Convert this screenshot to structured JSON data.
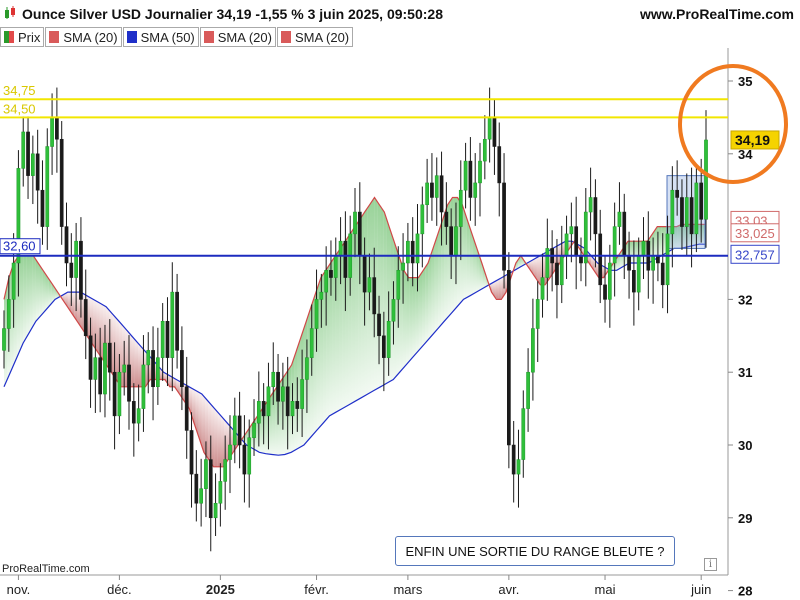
{
  "header": {
    "title": "Ounce Silver USD Journalier 34,19 -1,55 % 3 juin 2025, 09:50:28",
    "site": "www.ProRealTime.com"
  },
  "legend": [
    {
      "label": "Prix",
      "color": "#e24a4a"
    },
    {
      "label": "SMA (20)",
      "color": "#d95a5a"
    },
    {
      "label": "SMA (50)",
      "color": "#1f2fc9"
    },
    {
      "label": "SMA (20)",
      "color": "#d95a5a"
    },
    {
      "label": "SMA (20)",
      "color": "#d95a5a"
    }
  ],
  "footer": {
    "source": "ProRealTime.com",
    "note": "ENFIN UNE SORTIE DU RANGE BLEUTE ?",
    "info": "i"
  },
  "chart_data": {
    "type": "candlestick",
    "ylim": [
      27.7,
      35.4
    ],
    "y_ticks": [
      {
        "value": 28,
        "label": "28"
      },
      {
        "value": 29,
        "label": "29"
      },
      {
        "value": 30,
        "label": "30"
      },
      {
        "value": 31,
        "label": "31"
      },
      {
        "value": 32,
        "label": "32"
      },
      {
        "value": 34,
        "label": "34"
      },
      {
        "value": 35,
        "label": "35"
      }
    ],
    "x_ticks": [
      {
        "index": 3,
        "label": "nov."
      },
      {
        "index": 24,
        "label": "déc."
      },
      {
        "index": 45,
        "label": "2025"
      },
      {
        "index": 65,
        "label": "févr."
      },
      {
        "index": 84,
        "label": "mars"
      },
      {
        "index": 105,
        "label": "avr."
      },
      {
        "index": 125,
        "label": "mai"
      },
      {
        "index": 145,
        "label": "juin"
      }
    ],
    "horizontal_lines": [
      {
        "value": 34.75,
        "label": "34,75",
        "color": "#f2e600",
        "side": "left"
      },
      {
        "value": 34.5,
        "label": "34,50",
        "color": "#f2e600",
        "side": "left"
      },
      {
        "value": 32.6,
        "label": "32,60",
        "color": "#1c2bbf",
        "side": "left"
      }
    ],
    "price_labels": [
      {
        "value": 34.19,
        "label": "34,19",
        "bg": "#f5d300",
        "color": "#111"
      },
      {
        "value": 33.03,
        "label": "33,03",
        "bg": "#fff",
        "color": "#d06a6a"
      },
      {
        "value": 33.025,
        "label": "33,025",
        "bg": "#fff",
        "color": "#d06a6a"
      },
      {
        "value": 32.757,
        "label": "32,757",
        "bg": "#fff",
        "color": "#3545c8"
      }
    ],
    "series_closes": [
      31.6,
      32.0,
      32.5,
      33.8,
      34.3,
      33.7,
      34.0,
      33.5,
      33.0,
      34.1,
      34.5,
      34.2,
      33.0,
      32.5,
      32.3,
      32.8,
      32.0,
      31.5,
      30.9,
      31.2,
      30.7,
      31.4,
      31.0,
      30.4,
      31.0,
      31.1,
      30.6,
      30.3,
      30.5,
      31.1,
      31.3,
      30.8,
      31.2,
      31.7,
      31.2,
      32.1,
      31.3,
      30.8,
      30.2,
      29.6,
      29.2,
      29.4,
      29.8,
      29.0,
      29.2,
      29.5,
      29.8,
      30.0,
      30.4,
      30.0,
      29.6,
      30.1,
      30.3,
      30.6,
      30.4,
      30.8,
      31.0,
      30.6,
      30.8,
      30.4,
      30.6,
      30.5,
      30.9,
      31.2,
      31.6,
      32.0,
      32.1,
      32.4,
      32.3,
      32.6,
      32.8,
      32.3,
      32.9,
      33.2,
      32.6,
      32.1,
      32.3,
      31.8,
      31.5,
      31.2,
      31.7,
      32.0,
      32.4,
      32.5,
      32.8,
      32.5,
      32.9,
      33.3,
      33.6,
      33.4,
      33.7,
      33.2,
      33.0,
      32.6,
      33.0,
      33.5,
      33.9,
      33.4,
      33.6,
      33.9,
      34.2,
      34.5,
      34.1,
      33.6,
      32.4,
      30.0,
      29.6,
      29.8,
      30.5,
      31.0,
      31.6,
      32.0,
      32.3,
      32.7,
      32.5,
      32.2,
      32.6,
      32.9,
      33.0,
      32.6,
      32.5,
      33.2,
      33.4,
      32.9,
      32.2,
      32.0,
      32.5,
      33.0,
      33.2,
      32.6,
      32.4,
      32.1,
      32.6,
      32.8,
      32.4,
      32.6,
      32.5,
      32.2,
      32.9,
      33.5,
      33.4,
      33.0,
      33.4,
      32.9,
      33.6,
      33.1,
      34.19
    ],
    "sma20": [
      32.0,
      32.3,
      32.5,
      32.6,
      32.6,
      32.6,
      32.6,
      32.5,
      32.4,
      32.3,
      32.2,
      32.1,
      32.0,
      31.9,
      31.8,
      31.7,
      31.6,
      31.5,
      31.4,
      31.3,
      31.2,
      31.1,
      31.0,
      30.9,
      30.8,
      30.8,
      30.8,
      30.8,
      30.8,
      30.8,
      30.9,
      30.9,
      30.9,
      30.9,
      30.8,
      30.8,
      30.7,
      30.6,
      30.5,
      30.3,
      30.1,
      29.9,
      29.8,
      29.7,
      29.7,
      29.7,
      29.8,
      29.9,
      30.0,
      30.1,
      30.2,
      30.3,
      30.4,
      30.5,
      30.6,
      30.7,
      30.8,
      30.9,
      31.0,
      31.1,
      31.3,
      31.5,
      31.7,
      31.9,
      32.1,
      32.3,
      32.4,
      32.5,
      32.6,
      32.7,
      32.8,
      32.9,
      33.0,
      33.1,
      33.2,
      33.3,
      33.4,
      33.3,
      33.2,
      33.0,
      32.8,
      32.6,
      32.4,
      32.3,
      32.3,
      32.3,
      32.4,
      32.5,
      32.7,
      32.9,
      33.1,
      33.3,
      33.4,
      33.4,
      33.3,
      33.1,
      32.9,
      32.7,
      32.5,
      32.3,
      32.1,
      32.0,
      32.0,
      32.1,
      32.3,
      32.5,
      32.6,
      32.5,
      32.4,
      32.3,
      32.2,
      32.2,
      32.3,
      32.4,
      32.5,
      32.6,
      32.7,
      32.8,
      32.7,
      32.6,
      32.5,
      32.4,
      32.3,
      32.3,
      32.4,
      32.5,
      32.6,
      32.7,
      32.8,
      32.8,
      32.8,
      32.8,
      32.8,
      32.9,
      33.0,
      33.0,
      33.0,
      33.0,
      33.0,
      33.03,
      33.03,
      33.03,
      33.03,
      33.03,
      33.03
    ],
    "sma50": [
      30.8,
      31.0,
      31.2,
      31.4,
      31.55,
      31.7,
      31.8,
      31.9,
      32.0,
      32.05,
      32.1,
      32.1,
      32.1,
      32.05,
      32.0,
      31.95,
      31.9,
      31.8,
      31.7,
      31.6,
      31.5,
      31.4,
      31.3,
      31.2,
      31.1,
      31.0,
      30.95,
      30.9,
      30.85,
      30.8,
      30.75,
      30.7,
      30.6,
      30.5,
      30.4,
      30.3,
      30.2,
      30.1,
      30.0,
      29.95,
      29.9,
      29.88,
      29.87,
      29.86,
      29.87,
      29.9,
      29.95,
      30.0,
      30.1,
      30.2,
      30.3,
      30.4,
      30.45,
      30.5,
      30.55,
      30.6,
      30.65,
      30.7,
      30.75,
      30.8,
      30.85,
      30.9,
      31.0,
      31.1,
      31.2,
      31.3,
      31.4,
      31.5,
      31.6,
      31.7,
      31.8,
      31.9,
      32.0,
      32.05,
      32.1,
      32.15,
      32.2,
      32.25,
      32.3,
      32.35,
      32.4,
      32.45,
      32.5,
      32.55,
      32.6,
      32.65,
      32.7,
      32.75,
      32.8,
      32.8,
      32.75,
      32.7,
      32.6,
      32.5,
      32.45,
      32.4,
      32.4,
      32.45,
      32.5,
      32.5,
      32.5,
      32.5,
      32.55,
      32.6,
      32.65,
      32.7,
      32.7,
      32.72,
      32.74,
      32.76,
      32.757
    ]
  }
}
